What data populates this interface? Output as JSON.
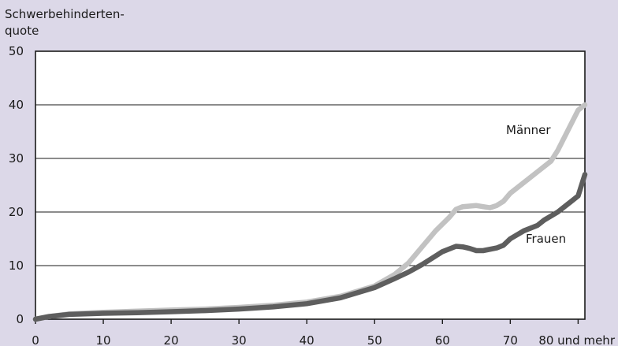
{
  "chart_data": {
    "type": "line",
    "ylabel_lines": [
      "Schwerbehinderten-",
      "quote"
    ],
    "xlabel": "",
    "xlim": [
      0,
      81
    ],
    "ylim": [
      0,
      50
    ],
    "x_ticks": [
      {
        "value": 0,
        "label": "0"
      },
      {
        "value": 10,
        "label": "10"
      },
      {
        "value": 20,
        "label": "20"
      },
      {
        "value": 30,
        "label": "30"
      },
      {
        "value": 40,
        "label": "40"
      },
      {
        "value": 50,
        "label": "50"
      },
      {
        "value": 60,
        "label": "60"
      },
      {
        "value": 70,
        "label": "70"
      },
      {
        "value": 80,
        "label": "80 und mehr"
      }
    ],
    "y_ticks": [
      0,
      10,
      20,
      30,
      40,
      50
    ],
    "grid": "horizontal",
    "legend": "inline labels",
    "series": [
      {
        "name": "Männer",
        "color": "#c2c2c2",
        "x": [
          0,
          2,
          5,
          10,
          15,
          20,
          25,
          30,
          35,
          40,
          45,
          50,
          53,
          55,
          57,
          59,
          61,
          62,
          63,
          65,
          66,
          67,
          68,
          69,
          70,
          72,
          74,
          76,
          77,
          78,
          79,
          80,
          81
        ],
        "y": [
          0,
          0.5,
          1,
          1.3,
          1.5,
          1.7,
          1.9,
          2.2,
          2.6,
          3.2,
          4.3,
          6.2,
          8.4,
          10.5,
          13.5,
          16.5,
          19,
          20.5,
          21,
          21.2,
          21,
          20.8,
          21.2,
          22,
          23.5,
          25.5,
          27.5,
          29.5,
          31.5,
          34,
          36.5,
          39,
          40
        ]
      },
      {
        "name": "Frauen",
        "color": "#5e5e5e",
        "x": [
          0,
          2,
          5,
          10,
          15,
          20,
          25,
          30,
          35,
          40,
          45,
          50,
          53,
          55,
          57,
          59,
          60,
          62,
          63,
          64,
          65,
          66,
          68,
          69,
          70,
          72,
          74,
          75,
          77,
          78,
          79,
          80,
          81
        ],
        "y": [
          0,
          0.5,
          0.9,
          1.1,
          1.2,
          1.4,
          1.6,
          1.9,
          2.3,
          2.9,
          4,
          5.9,
          7.6,
          8.8,
          10.2,
          11.8,
          12.6,
          13.6,
          13.5,
          13.2,
          12.8,
          12.8,
          13.3,
          13.8,
          15,
          16.5,
          17.5,
          18.5,
          20,
          21,
          22,
          23,
          27
        ]
      }
    ]
  }
}
